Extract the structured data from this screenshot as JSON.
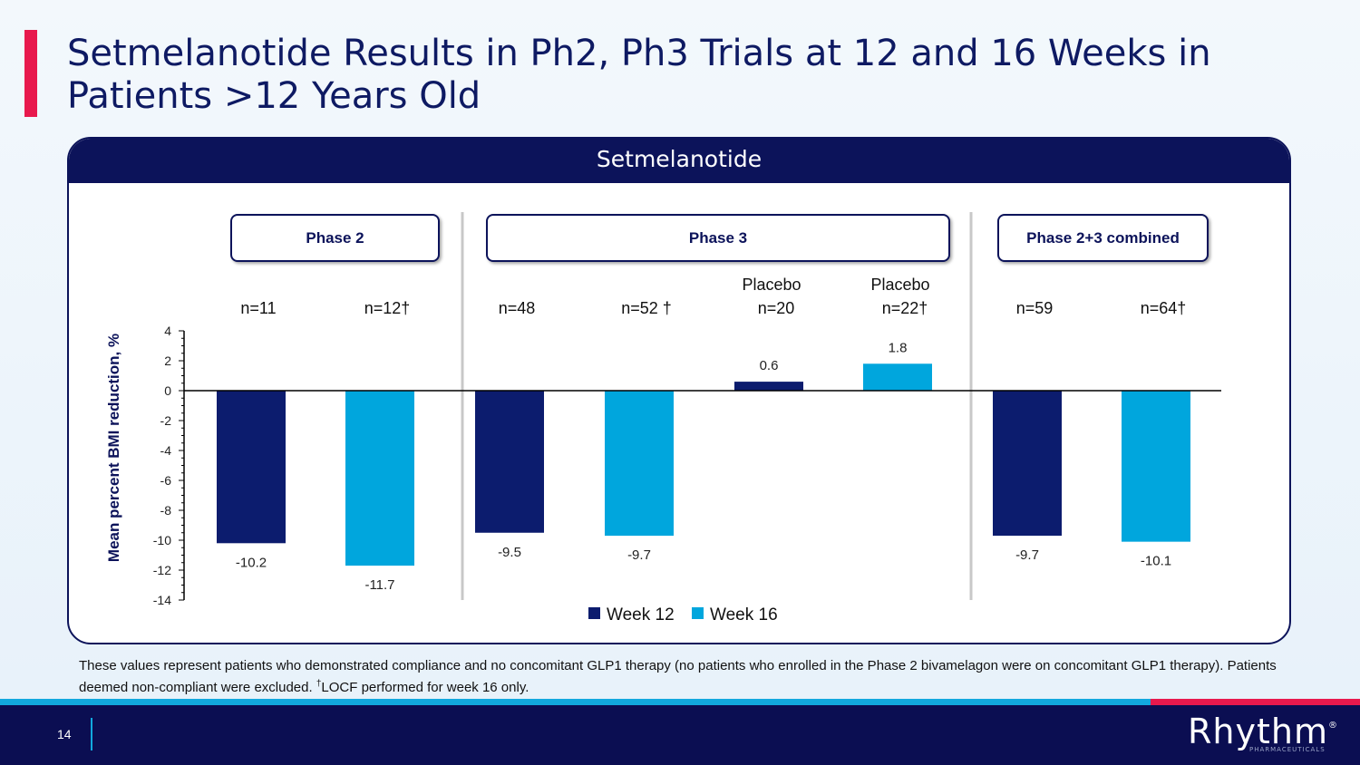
{
  "slide": {
    "title": "Setmelanotide Results in Ph2, Ph3 Trials at 12 and 16 Weeks in Patients >12 Years Old",
    "panel_header": "Setmelanotide",
    "phases": [
      "Phase 2",
      "Phase 3",
      "Phase 2+3 combined"
    ],
    "footnote_main": "These values represent patients who demonstrated compliance and no concomitant GLP1 therapy (no patients who enrolled in the Phase 2 bivamelagon were on concomitant GLP1 therapy). Patients deemed non-compliant were excluded. ",
    "footnote_dagger": "†",
    "footnote_tail": "LOCF performed for week 16 only.",
    "page_number": "14",
    "logo": "Rhythm",
    "logo_mark": "®",
    "logo_sub": "PHARMACEUTICALS"
  },
  "colors": {
    "week12": "#0c1c6e",
    "week16": "#00a6dd",
    "accent": "#e8194d",
    "navy": "#0c135a"
  },
  "chart_data": {
    "type": "bar",
    "ylabel": "Mean percent BMI reduction, %",
    "ylim": [
      -14,
      4
    ],
    "yticks": [
      4,
      2,
      0,
      -2,
      -4,
      -6,
      -8,
      -10,
      -12,
      -14
    ],
    "legend": [
      {
        "name": "Week 12",
        "color": "#0c1c6e"
      },
      {
        "name": "Week 16",
        "color": "#00a6dd"
      }
    ],
    "bars": [
      {
        "group": "Phase 2",
        "series": "Week 12",
        "top": "",
        "n": "n=11",
        "value": -10.2,
        "label": "-10.2"
      },
      {
        "group": "Phase 2",
        "series": "Week 16",
        "top": "",
        "n": "n=12†",
        "value": -11.7,
        "label": "-11.7"
      },
      {
        "group": "Phase 3",
        "series": "Week 12",
        "top": "",
        "n": "n=48",
        "value": -9.5,
        "label": "-9.5"
      },
      {
        "group": "Phase 3",
        "series": "Week 16",
        "top": "",
        "n": "n=52 †",
        "value": -9.7,
        "label": "-9.7"
      },
      {
        "group": "Phase 3",
        "series": "Week 12",
        "top": "Placebo",
        "n": "n=20",
        "value": 0.6,
        "label": "0.6"
      },
      {
        "group": "Phase 3",
        "series": "Week 16",
        "top": "Placebo",
        "n": "n=22†",
        "value": 1.8,
        "label": "1.8"
      },
      {
        "group": "Phase 2+3 combined",
        "series": "Week 12",
        "top": "",
        "n": "n=59",
        "value": -9.7,
        "label": "-9.7"
      },
      {
        "group": "Phase 2+3 combined",
        "series": "Week 16",
        "top": "",
        "n": "n=64†",
        "value": -10.1,
        "label": "-10.1"
      }
    ]
  }
}
